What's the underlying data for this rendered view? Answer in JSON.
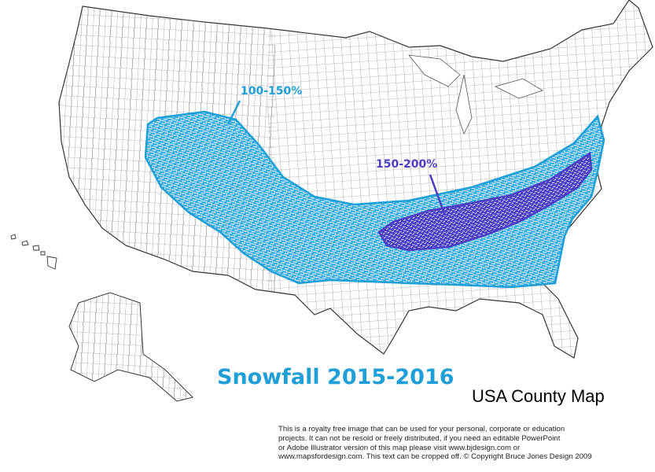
{
  "map": {
    "title": "Snowfall 2015-2016",
    "subtitle": "USA County Map",
    "copyright_lines": [
      "This is a royalty free image that can be used for your personal, corporate or education",
      "projects. It can not be resold or freely distributed, if you need an editable PowerPoint",
      "or Adobe Illustrator version of this map please visit www.bjdesign.com or",
      "www.mapsfordesign.com.  This text can be cropped off.  © Copyright Bruce Jones Design 2009"
    ]
  },
  "zones": [
    {
      "label": "100-150%",
      "color": "#1e9fd8"
    },
    {
      "label": "150-200%",
      "color": "#4a3fc4"
    }
  ],
  "colors": {
    "title": "#1e9fd8",
    "county_lines": "#6e6e6e",
    "state_lines": "#555555"
  }
}
